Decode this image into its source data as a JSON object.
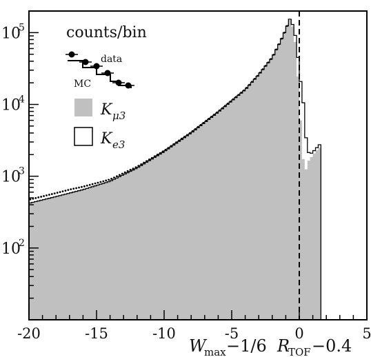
{
  "chart_data": {
    "type": "histogram",
    "ylabel": "counts/bin",
    "xlabel_parts": {
      "w": "W",
      "w_sub": "max",
      "mid": "−1/6",
      "r": "R",
      "r_sub": "TOF",
      "tail": "−0.4"
    },
    "xlim": [
      -20,
      5
    ],
    "ylim": [
      10,
      200000
    ],
    "log_y": true,
    "x_ticks": [
      "-20",
      "-15",
      "-10",
      "-5",
      "0",
      "5"
    ],
    "y_ticks": [
      {
        "base": "10",
        "exp": "2"
      },
      {
        "base": "10",
        "exp": "3"
      },
      {
        "base": "10",
        "exp": "4"
      },
      {
        "base": "10",
        "exp": "5"
      }
    ],
    "cut_line_x": 0,
    "legend": {
      "data_label": "data",
      "mc_label": "MC",
      "kmu3_label": {
        "k": "K",
        "sub": "μ3"
      },
      "ke3_label": {
        "k": "K",
        "sub": "e3"
      }
    },
    "colors": {
      "kmu3_fill": "#c0c0c0",
      "ke3_fill": "#ffffff",
      "line": "#000000"
    },
    "bin_width": 0.2,
    "kmu3_profile": [
      [
        -20,
        420
      ],
      [
        -18,
        520
      ],
      [
        -16,
        650
      ],
      [
        -14,
        850
      ],
      [
        -12,
        1300
      ],
      [
        -10,
        2200
      ],
      [
        -8,
        4000
      ],
      [
        -6,
        7800
      ],
      [
        -4,
        16000
      ],
      [
        -3,
        26000
      ],
      [
        -2,
        45000
      ],
      [
        -1.4,
        75000
      ],
      [
        -1.0,
        110000
      ],
      [
        -0.7,
        150000
      ],
      [
        -0.4,
        110000
      ],
      [
        -0.2,
        50000
      ],
      [
        0,
        12000
      ],
      [
        0.2,
        3000
      ],
      [
        0.4,
        1000
      ],
      [
        0.6,
        1550
      ],
      [
        0.8,
        1750
      ],
      [
        1.0,
        1950
      ],
      [
        1.2,
        2200
      ],
      [
        1.4,
        2400
      ],
      [
        1.6,
        2600
      ]
    ],
    "ke3_extra": [
      [
        -1.0,
        1500
      ],
      [
        -0.6,
        5000
      ],
      [
        -0.4,
        12000
      ],
      [
        -0.2,
        25000
      ],
      [
        0.0,
        17000
      ],
      [
        0.2,
        13000
      ],
      [
        0.4,
        6000
      ],
      [
        0.6,
        800
      ],
      [
        0.8,
        300
      ],
      [
        1.0,
        200
      ],
      [
        1.4,
        200
      ],
      [
        1.6,
        300
      ]
    ],
    "data_points_note": "",
    "data_ratio_profile": [
      [
        -20,
        1.12
      ],
      [
        -17,
        1.12
      ],
      [
        -14,
        1.06
      ],
      [
        -10,
        1.03
      ],
      [
        -5,
        1.02
      ],
      [
        -1,
        1.0
      ],
      [
        1.6,
        1.0
      ]
    ]
  }
}
